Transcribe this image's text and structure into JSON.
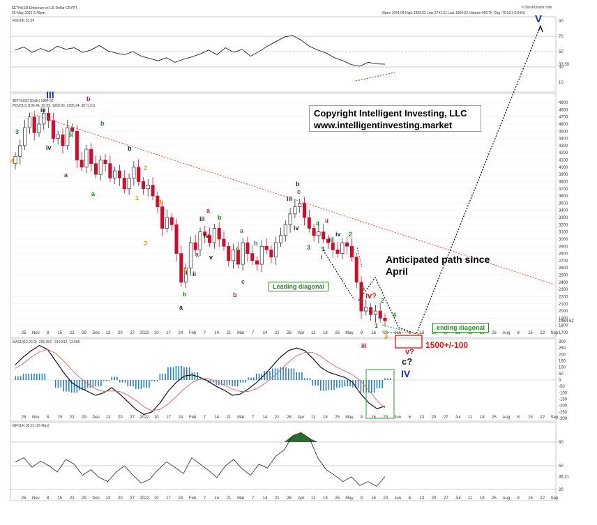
{
  "header": {
    "symbol_line": "$ETHUSD Ethereum vs US Dollar  CRYPT",
    "date_line": "26-May-2022 5:49pm",
    "ohlc_line": "Open 1941.04  High 1983.52  Low 1741.21  Last 1864.52  Volume 499.7K  Chg -76.52 (-3.94%)",
    "watermark": "© StockCharts.com",
    "rsi_label": "RSI(14) 33.59",
    "price_label": "$ETHUSD (Daily) 1864.52",
    "price_sub_label": "PDVOLS (196.46, 50.99, 1660.80, 2295.24, 3071.31)",
    "macd_label": "MACD(12,26,9) -205.057, -219.812, 13.555",
    "mfi_label": "MFI(14) 36.21 (26 May)"
  },
  "annotations": {
    "copyright_line1": "Copyright Intelligent Investing, LLC",
    "copyright_line2": "www.intelligentinvesting.market",
    "anticipated": "Anticipated      path since April",
    "leading_diagonal": "Leading diagonal",
    "ending_diagonal": "ending diagonal",
    "target": "1500+/-100",
    "wave_III": "III",
    "wave_IV": "IV",
    "wave_V": "V",
    "wave_c_q": "c?",
    "wave_v_q": "v?",
    "wave_iv_q": "iv?"
  },
  "colors": {
    "up_candle": "#2b2b2b",
    "down_candle": "#c8102e",
    "trendline": "#e0443c",
    "green_label": "#1f8a1f",
    "orange_label": "#e49a1a",
    "blue_label": "#1a2fb0",
    "macd_hist": "#2a7fbf",
    "mfi_fill": "#2d6a2d"
  },
  "chart_data": [
    {
      "type": "line",
      "panel": "RSI(14)",
      "y_ticks": [
        90,
        70,
        50,
        30,
        10
      ],
      "last_value": 33.59,
      "values": [
        52,
        56,
        49,
        54,
        50,
        57,
        53,
        55,
        49,
        52,
        58,
        51,
        48,
        46,
        50,
        44,
        41,
        38,
        42,
        36,
        40,
        43,
        47,
        52,
        46,
        55,
        49,
        53,
        44,
        50,
        57,
        63,
        69,
        71,
        65,
        57,
        52,
        48,
        42,
        38,
        33,
        31,
        36,
        34,
        33.59
      ]
    },
    {
      "type": "candlestick",
      "panel": "Price",
      "title": "$ETHUSD (Daily) 1864.52",
      "y_ticks": [
        4900,
        4800,
        4700,
        4600,
        4500,
        4400,
        4300,
        4200,
        4100,
        4000,
        3900,
        3800,
        3700,
        3600,
        3500,
        3400,
        3300,
        3200,
        3100,
        3000,
        2900,
        2800,
        2700,
        2600,
        2500,
        2400,
        2300,
        2200,
        2100,
        2000,
        1900,
        1800,
        1700
      ],
      "x_labels": [
        "25",
        "Nov",
        "8",
        "15",
        "22",
        "29",
        "Dec",
        "13",
        "20",
        "27",
        "2022",
        "10",
        "17",
        "24",
        "Feb",
        "7",
        "14",
        "21",
        "Mar",
        "7",
        "14",
        "21",
        "28",
        "Apr",
        "11",
        "18",
        "25",
        "May",
        "9",
        "16",
        "23",
        "Jun",
        "6",
        "13",
        "20",
        "27",
        "Jul",
        "11",
        "18",
        "25",
        "Aug",
        "8",
        "15",
        "22",
        "Sep"
      ],
      "close": [
        4150,
        4300,
        4550,
        4700,
        4480,
        4600,
        4750,
        4650,
        4400,
        4450,
        4300,
        4550,
        4500,
        4100,
        4000,
        4250,
        4050,
        3900,
        4100,
        4050,
        3850,
        3950,
        3850,
        3700,
        3850,
        4000,
        3800,
        3700,
        3750,
        3600,
        3450,
        3150,
        3300,
        3200,
        2800,
        2400,
        2600,
        2950,
        2850,
        3100,
        3050,
        2950,
        3150,
        3000,
        2900,
        2700,
        2850,
        2650,
        2950,
        2800,
        2700,
        2650,
        2900,
        2850,
        2750,
        2950,
        3050,
        3200,
        3350,
        3450,
        3500,
        3300,
        3150,
        3050,
        3100,
        3000,
        2950,
        2850,
        2800,
        2950,
        2900,
        2750,
        2400,
        2000,
        2050,
        1950,
        2000,
        1900,
        1864.52
      ],
      "last": 1864.52,
      "trendline": {
        "from": [
          "Nov",
          4800
        ],
        "to": [
          "Sep",
          2350
        ]
      }
    },
    {
      "type": "line",
      "panel": "MACD(12,26,9)",
      "y_ticks": [
        300,
        250,
        200,
        150,
        100,
        50,
        0,
        -50,
        -100,
        -150,
        -200,
        -250,
        -300
      ],
      "macd": [
        120,
        180,
        230,
        270,
        240,
        150,
        60,
        -20,
        -60,
        -90,
        -120,
        -100,
        -60,
        -110,
        -170,
        -230,
        -270,
        -250,
        -180,
        -90,
        -20,
        30,
        40,
        20,
        -10,
        -50,
        -80,
        -120,
        -110,
        -70,
        -20,
        40,
        110,
        180,
        230,
        250,
        230,
        170,
        100,
        60,
        40,
        20,
        -20,
        -110,
        -180,
        -225,
        -205
      ],
      "signal": [
        90,
        130,
        180,
        220,
        240,
        210,
        150,
        80,
        20,
        -30,
        -70,
        -90,
        -85,
        -90,
        -120,
        -160,
        -210,
        -240,
        -230,
        -190,
        -130,
        -70,
        -20,
        10,
        10,
        -10,
        -40,
        -70,
        -90,
        -90,
        -70,
        -30,
        20,
        80,
        140,
        190,
        215,
        215,
        185,
        140,
        100,
        70,
        40,
        -10,
        -80,
        -160,
        -219
      ],
      "histogram": [
        30,
        50,
        50,
        50,
        0,
        -60,
        -90,
        -100,
        -80,
        -60,
        -50,
        -10,
        25,
        -20,
        -50,
        -70,
        -60,
        -10,
        50,
        100,
        110,
        100,
        60,
        10,
        -20,
        -40,
        -40,
        -50,
        -20,
        20,
        50,
        70,
        90,
        100,
        90,
        60,
        15,
        -45,
        -85,
        -80,
        -60,
        -50,
        -60,
        -100,
        -100,
        -65,
        14
      ]
    },
    {
      "type": "line",
      "panel": "MFI(14)",
      "y_ticks": [
        80,
        50,
        20
      ],
      "last_value": 36.21,
      "values": [
        55,
        60,
        48,
        56,
        50,
        42,
        58,
        52,
        38,
        45,
        35,
        30,
        42,
        50,
        38,
        28,
        33,
        45,
        55,
        48,
        40,
        60,
        52,
        44,
        35,
        50,
        58,
        46,
        38,
        52,
        47,
        62,
        70,
        88,
        92,
        85,
        60,
        45,
        38,
        30,
        36,
        25,
        30,
        24,
        36.21
      ]
    }
  ],
  "wave_labels": [
    {
      "t": "3",
      "c": "green"
    },
    {
      "t": "iii",
      "c": "black"
    },
    {
      "t": "iv",
      "c": "black"
    },
    {
      "t": "4",
      "c": "orange"
    },
    {
      "t": "5",
      "c": "green"
    },
    {
      "t": "b",
      "c": "red"
    },
    {
      "t": "b",
      "c": "green"
    },
    {
      "t": "a",
      "c": "red"
    },
    {
      "t": "a",
      "c": "green"
    },
    {
      "t": "b",
      "c": "black"
    },
    {
      "t": "2",
      "c": "orange"
    },
    {
      "t": "1",
      "c": "orange"
    },
    {
      "t": "3",
      "c": "orange"
    },
    {
      "t": "4",
      "c": "orange"
    },
    {
      "t": "5",
      "c": "orange"
    },
    {
      "t": "a",
      "c": "black"
    },
    {
      "t": "b",
      "c": "green"
    },
    {
      "t": "a",
      "c": "green"
    },
    {
      "t": "i",
      "c": "black"
    },
    {
      "t": "ii",
      "c": "black"
    },
    {
      "t": "iii",
      "c": "black"
    },
    {
      "t": "iv",
      "c": "black"
    },
    {
      "t": "v",
      "c": "black"
    },
    {
      "t": "b",
      "c": "green"
    },
    {
      "t": "a",
      "c": "red"
    },
    {
      "t": "b",
      "c": "red"
    },
    {
      "t": "c",
      "c": "green"
    },
    {
      "t": "a",
      "c": "green"
    },
    {
      "t": "b",
      "c": "green"
    },
    {
      "t": "c",
      "c": "green"
    },
    {
      "t": "iii",
      "c": "black"
    },
    {
      "t": "iv",
      "c": "black"
    },
    {
      "t": "b",
      "c": "black"
    },
    {
      "t": "c",
      "c": "red"
    },
    {
      "t": "ii",
      "c": "red"
    },
    {
      "t": "iii",
      "c": "black"
    },
    {
      "t": "iv",
      "c": "black"
    },
    {
      "t": "i",
      "c": "red"
    },
    {
      "t": "iii",
      "c": "red"
    },
    {
      "t": "4",
      "c": "green"
    },
    {
      "t": "2",
      "c": "green"
    },
    {
      "t": "1",
      "c": "green"
    },
    {
      "t": "3",
      "c": "green"
    },
    {
      "t": "5",
      "c": "green"
    },
    {
      "t": "2",
      "c": "green"
    },
    {
      "t": "4",
      "c": "green"
    },
    {
      "t": "1",
      "c": "green"
    },
    {
      "t": "3",
      "c": "orange"
    }
  ]
}
